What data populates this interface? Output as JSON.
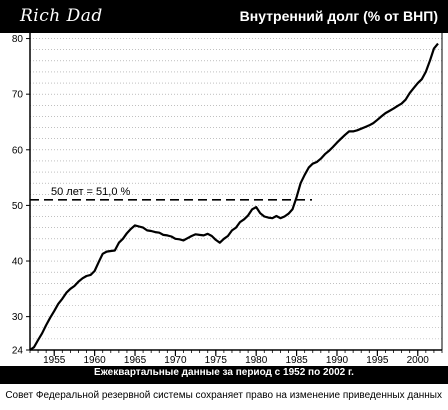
{
  "header": {
    "logo_text": "Rich Dad",
    "title": "Внутренний долг (% от ВНП)"
  },
  "footer": {
    "caption": "Ежеквартальные данные за период с 1952 по 2002 г.",
    "note": "Совет Федеральной резервной системы сохраняет право на изменение приведенных данных"
  },
  "chart_data": {
    "type": "line",
    "title": "Внутренний долг (% от ВНП)",
    "xlabel": "Ежеквартальные данные за период с 1952 по 2002 г.",
    "ylabel": "",
    "xlim": [
      1952,
      2003
    ],
    "ylim": [
      24,
      81
    ],
    "x_ticks": [
      1955,
      1960,
      1965,
      1970,
      1975,
      1980,
      1985,
      1990,
      1995,
      2000
    ],
    "x_tick_labels": [
      "1955",
      "1960",
      "1965",
      "1970",
      "1975",
      "1980",
      "1985",
      "1990",
      "1995",
      "2000"
    ],
    "y_ticks": [
      24,
      30,
      40,
      50,
      60,
      70,
      80
    ],
    "y_tick_labels": [
      "24",
      "30",
      "40",
      "50",
      "60",
      "70",
      "80"
    ],
    "grid": true,
    "reference_line": {
      "y": 51.0,
      "label": "50 лет = 51,0 %",
      "style": "dashed"
    },
    "series": [
      {
        "x": [
          1952.0,
          1952.5,
          1953.0,
          1953.5,
          1954.0,
          1954.5,
          1955.0,
          1955.5,
          1956.0,
          1956.5,
          1957.0,
          1957.5,
          1958.0,
          1958.5,
          1959.0,
          1959.5,
          1960.0,
          1960.5,
          1961.0,
          1961.5,
          1962.0,
          1962.5,
          1963.0,
          1963.5,
          1964.0,
          1964.5,
          1965.0,
          1965.5,
          1966.0,
          1966.5,
          1967.0,
          1967.5,
          1968.0,
          1968.5,
          1969.0,
          1969.5,
          1970.0,
          1970.5,
          1971.0,
          1971.5,
          1972.0,
          1972.5,
          1973.0,
          1973.5,
          1974.0,
          1974.5,
          1975.0,
          1975.5,
          1976.0,
          1976.5,
          1977.0,
          1977.5,
          1978.0,
          1978.5,
          1979.0,
          1979.5,
          1980.0,
          1980.5,
          1981.0,
          1981.5,
          1982.0,
          1982.5,
          1983.0,
          1983.5,
          1984.0,
          1984.5,
          1985.0,
          1985.5,
          1986.0,
          1986.5,
          1987.0,
          1987.5,
          1988.0,
          1988.5,
          1989.0,
          1989.5,
          1990.0,
          1990.5,
          1991.0,
          1991.5,
          1992.0,
          1992.5,
          1993.0,
          1993.5,
          1994.0,
          1994.5,
          1995.0,
          1995.5,
          1996.0,
          1996.5,
          1997.0,
          1997.5,
          1998.0,
          1998.5,
          1999.0,
          1999.5,
          2000.0,
          2000.5,
          2001.0,
          2001.5,
          2002.0,
          2002.5
        ],
        "y": [
          24.0,
          24.5,
          25.8,
          27.0,
          28.5,
          29.8,
          31.0,
          32.3,
          33.2,
          34.3,
          35.0,
          35.5,
          36.3,
          36.9,
          37.3,
          37.5,
          38.2,
          39.8,
          41.3,
          41.7,
          41.8,
          41.9,
          43.3,
          44.0,
          45.0,
          45.8,
          46.4,
          46.2,
          46.0,
          45.5,
          45.4,
          45.2,
          45.1,
          44.7,
          44.6,
          44.4,
          44.0,
          43.9,
          43.7,
          44.1,
          44.5,
          44.8,
          44.7,
          44.6,
          44.9,
          44.5,
          43.8,
          43.3,
          44.0,
          44.5,
          45.5,
          46.0,
          47.0,
          47.5,
          48.2,
          49.3,
          49.7,
          48.6,
          48.0,
          47.8,
          47.7,
          48.1,
          47.7,
          48.0,
          48.5,
          49.3,
          51.5,
          54.0,
          55.5,
          56.8,
          57.5,
          57.8,
          58.4,
          59.2,
          59.8,
          60.5,
          61.3,
          62.0,
          62.7,
          63.3,
          63.3,
          63.5,
          63.8,
          64.1,
          64.4,
          64.8,
          65.4,
          66.0,
          66.6,
          67.0,
          67.4,
          67.9,
          68.3,
          69.0,
          70.2,
          71.1,
          72.0,
          72.7,
          74.0,
          76.0,
          78.2,
          79.1
        ]
      }
    ]
  }
}
